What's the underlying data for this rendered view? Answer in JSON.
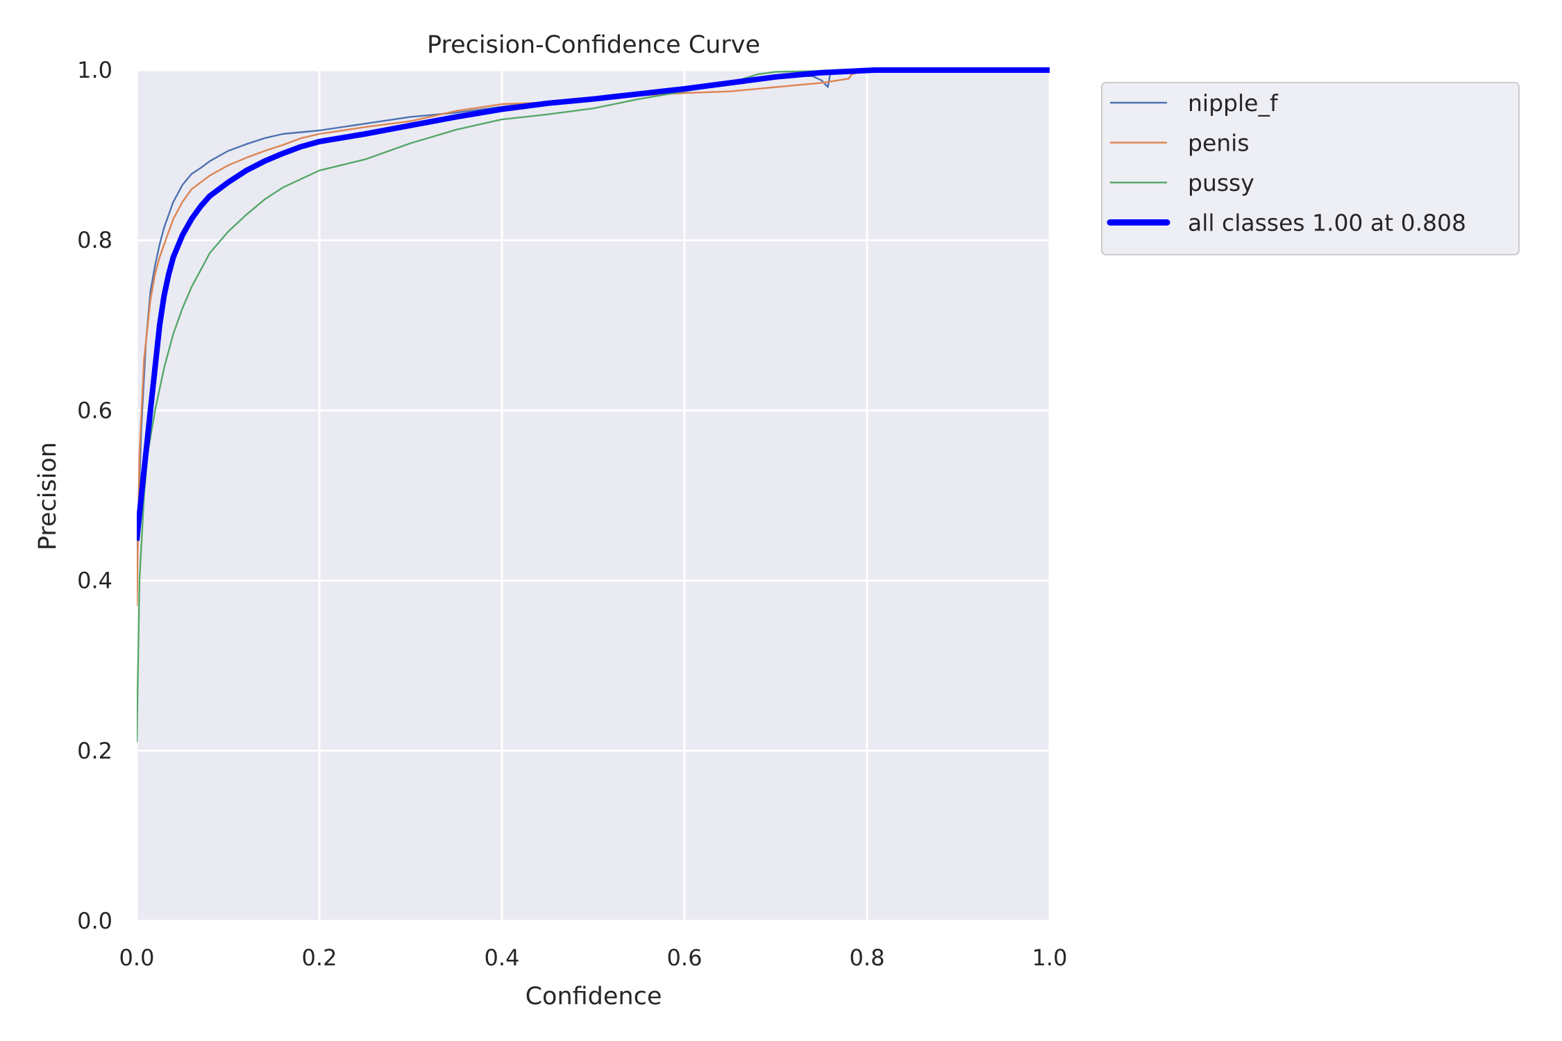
{
  "chart_data": {
    "type": "line",
    "title": "Precision-Confidence Curve",
    "xlabel": "Confidence",
    "ylabel": "Precision",
    "xlim": [
      0.0,
      1.0
    ],
    "ylim": [
      0.0,
      1.0
    ],
    "xticks": [
      "0.0",
      "0.2",
      "0.4",
      "0.6",
      "0.8",
      "1.0"
    ],
    "yticks": [
      "0.0",
      "0.2",
      "0.4",
      "0.6",
      "0.8",
      "1.0"
    ],
    "grid": true,
    "legend_position": "outside upper right",
    "background": "#EAEAF2",
    "series": [
      {
        "name": "nipple_f",
        "color": "#4C72B0",
        "width": 2.4,
        "x": [
          0.0,
          0.005,
          0.01,
          0.015,
          0.02,
          0.025,
          0.03,
          0.035,
          0.04,
          0.05,
          0.06,
          0.07,
          0.08,
          0.1,
          0.12,
          0.14,
          0.16,
          0.18,
          0.2,
          0.25,
          0.3,
          0.35,
          0.4,
          0.45,
          0.5,
          0.55,
          0.6,
          0.65,
          0.7,
          0.74,
          0.75,
          0.757,
          0.76,
          0.8,
          1.0
        ],
        "y": [
          0.42,
          0.58,
          0.68,
          0.74,
          0.77,
          0.795,
          0.815,
          0.83,
          0.845,
          0.865,
          0.878,
          0.885,
          0.893,
          0.905,
          0.913,
          0.92,
          0.925,
          0.927,
          0.929,
          0.937,
          0.945,
          0.95,
          0.957,
          0.963,
          0.966,
          0.97,
          0.976,
          0.984,
          0.992,
          0.993,
          0.988,
          0.98,
          0.998,
          1.0,
          1.0
        ]
      },
      {
        "name": "penis",
        "color": "#DD8452",
        "width": 2.4,
        "x": [
          0.0,
          0.003,
          0.008,
          0.015,
          0.02,
          0.025,
          0.03,
          0.035,
          0.04,
          0.05,
          0.06,
          0.07,
          0.08,
          0.1,
          0.12,
          0.14,
          0.16,
          0.18,
          0.2,
          0.25,
          0.3,
          0.35,
          0.4,
          0.45,
          0.5,
          0.55,
          0.6,
          0.65,
          0.7,
          0.75,
          0.78,
          0.783,
          0.8,
          1.0
        ],
        "y": [
          0.37,
          0.55,
          0.66,
          0.73,
          0.76,
          0.78,
          0.795,
          0.81,
          0.825,
          0.845,
          0.86,
          0.868,
          0.876,
          0.888,
          0.897,
          0.905,
          0.912,
          0.92,
          0.925,
          0.933,
          0.94,
          0.952,
          0.96,
          0.962,
          0.966,
          0.97,
          0.973,
          0.975,
          0.98,
          0.985,
          0.99,
          0.995,
          1.0,
          1.0
        ]
      },
      {
        "name": "pussy",
        "color": "#55A868",
        "width": 2.4,
        "x": [
          0.0,
          0.003,
          0.008,
          0.012,
          0.02,
          0.03,
          0.04,
          0.05,
          0.06,
          0.07,
          0.08,
          0.1,
          0.12,
          0.14,
          0.16,
          0.18,
          0.2,
          0.25,
          0.3,
          0.35,
          0.4,
          0.45,
          0.5,
          0.55,
          0.6,
          0.65,
          0.68,
          0.7,
          0.8,
          1.0
        ],
        "y": [
          0.21,
          0.4,
          0.5,
          0.55,
          0.6,
          0.65,
          0.69,
          0.72,
          0.745,
          0.765,
          0.785,
          0.81,
          0.83,
          0.848,
          0.862,
          0.872,
          0.882,
          0.895,
          0.914,
          0.93,
          0.942,
          0.948,
          0.955,
          0.966,
          0.975,
          0.985,
          0.995,
          0.998,
          1.0,
          1.0
        ]
      },
      {
        "name": "all classes 1.00 at 0.808",
        "color": "#0000FF",
        "width": 8,
        "x": [
          0.0,
          0.005,
          0.01,
          0.015,
          0.02,
          0.025,
          0.03,
          0.035,
          0.04,
          0.05,
          0.06,
          0.07,
          0.08,
          0.1,
          0.12,
          0.14,
          0.16,
          0.18,
          0.2,
          0.25,
          0.3,
          0.35,
          0.4,
          0.45,
          0.5,
          0.55,
          0.6,
          0.65,
          0.7,
          0.75,
          0.808,
          1.0
        ],
        "y": [
          0.447,
          0.5,
          0.55,
          0.6,
          0.65,
          0.7,
          0.735,
          0.76,
          0.78,
          0.806,
          0.825,
          0.84,
          0.852,
          0.868,
          0.882,
          0.893,
          0.902,
          0.91,
          0.916,
          0.925,
          0.935,
          0.945,
          0.954,
          0.961,
          0.966,
          0.972,
          0.978,
          0.985,
          0.992,
          0.997,
          1.0,
          1.0
        ]
      }
    ],
    "annotation": "all classes 1.00 at 0.808"
  },
  "legend": {
    "items": [
      {
        "label": "nipple_f",
        "color": "#4C72B0"
      },
      {
        "label": "penis",
        "color": "#DD8452"
      },
      {
        "label": "pussy",
        "color": "#55A868"
      },
      {
        "label": "all classes 1.00 at 0.808",
        "color": "#0000FF"
      }
    ]
  }
}
